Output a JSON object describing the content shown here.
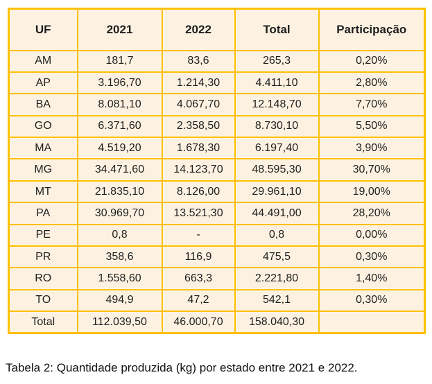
{
  "colors": {
    "table_border": "#FFC000",
    "cell_background": "#FDF2E2",
    "text_color": "#1E1E1E",
    "page_background": "#FFFFFF"
  },
  "chart_data": {
    "type": "table",
    "title": "Tabela 2: Quantidade produzida (kg) por estado entre 2021 e 2022.",
    "columns": [
      "UF",
      "2021",
      "2022",
      "Total",
      "Participação"
    ],
    "rows": [
      [
        "AM",
        "181,7",
        "83,6",
        "265,3",
        "0,20%"
      ],
      [
        "AP",
        "3.196,70",
        "1.214,30",
        "4.411,10",
        "2,80%"
      ],
      [
        "BA",
        "8.081,10",
        "4.067,70",
        "12.148,70",
        "7,70%"
      ],
      [
        "GO",
        "6.371,60",
        "2.358,50",
        "8.730,10",
        "5,50%"
      ],
      [
        "MA",
        "4.519,20",
        "1.678,30",
        "6.197,40",
        "3,90%"
      ],
      [
        "MG",
        "34.471,60",
        "14.123,70",
        "48.595,30",
        "30,70%"
      ],
      [
        "MT",
        "21.835,10",
        "8.126,00",
        "29.961,10",
        "19,00%"
      ],
      [
        "PA",
        "30.969,70",
        "13.521,30",
        "44.491,00",
        "28,20%"
      ],
      [
        "PE",
        "0,8",
        "-",
        "0,8",
        "0,00%"
      ],
      [
        "PR",
        "358,6",
        "116,9",
        "475,5",
        "0,30%"
      ],
      [
        "RO",
        "1.558,60",
        "663,3",
        "2.221,80",
        "1,40%"
      ],
      [
        "TO",
        "494,9",
        "47,2",
        "542,1",
        "0,30%"
      ],
      [
        "Total",
        "112.039,50",
        "46.000,70",
        "158.040,30",
        ""
      ]
    ],
    "layout": {
      "grid": true,
      "header_bold": true,
      "caption_position": "below-left"
    }
  }
}
